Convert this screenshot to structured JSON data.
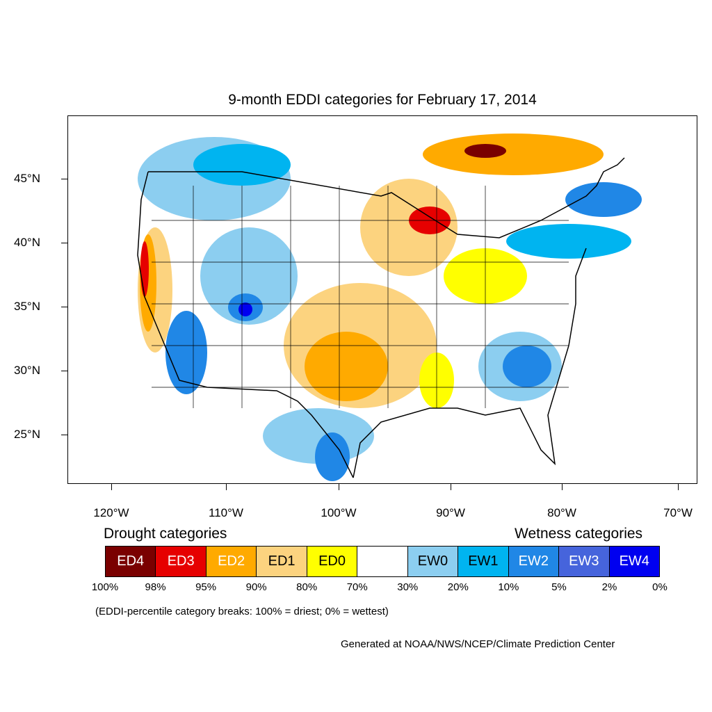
{
  "title": "9-month EDDI categories for February 17, 2014",
  "map": {
    "lat_labels": [
      "45°N",
      "40°N",
      "35°N",
      "30°N",
      "25°N"
    ],
    "lon_labels": [
      "120°W",
      "110°W",
      "100°W",
      "90°W",
      "80°W",
      "70°W"
    ],
    "colors": {
      "ED4": "#7a0000",
      "ED3": "#e60000",
      "ED2": "#ffaa00",
      "ED1": "#fcd37f",
      "ED0": "#ffff00",
      "Neutral": "#ffffff",
      "EW0": "#8ccef0",
      "EW1": "#00b4f0",
      "EW2": "#2087e6",
      "EW3": "#4664dc",
      "EW4": "#0000f0"
    }
  },
  "legend": {
    "drought_heading": "Drought categories",
    "wetness_heading": "Wetness categories",
    "categories": [
      {
        "label": "ED4",
        "color": "#7a0000",
        "text_color": "#ffffff"
      },
      {
        "label": "ED3",
        "color": "#e60000",
        "text_color": "#ffffff"
      },
      {
        "label": "ED2",
        "color": "#ffaa00",
        "text_color": "#ffffff"
      },
      {
        "label": "ED1",
        "color": "#fcd37f",
        "text_color": "#000000"
      },
      {
        "label": "ED0",
        "color": "#ffff00",
        "text_color": "#000000"
      },
      {
        "label": "",
        "color": "#ffffff",
        "text_color": "#000000"
      },
      {
        "label": "EW0",
        "color": "#8ccef0",
        "text_color": "#000000"
      },
      {
        "label": "EW1",
        "color": "#00b4f0",
        "text_color": "#000000"
      },
      {
        "label": "EW2",
        "color": "#2087e6",
        "text_color": "#ffffff"
      },
      {
        "label": "EW3",
        "color": "#4664dc",
        "text_color": "#ffffff"
      },
      {
        "label": "EW4",
        "color": "#0000f0",
        "text_color": "#ffffff"
      }
    ],
    "breaks": [
      "100%",
      "98%",
      "95%",
      "90%",
      "80%",
      "70%",
      "30%",
      "20%",
      "10%",
      "5%",
      "2%",
      "0%"
    ],
    "note": "(EDDI-percentile category breaks: 100% = driest; 0% = wettest)"
  },
  "credit": "Generated at NOAA/NWS/NCEP/Climate Prediction Center"
}
